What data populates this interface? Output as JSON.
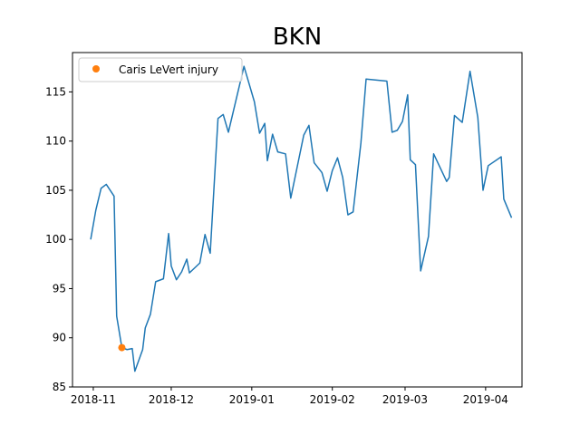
{
  "chart_data": {
    "type": "line",
    "title": "BKN",
    "xlabel": "",
    "ylabel": "",
    "x_axis": "date",
    "xlim": [
      "2018-10-24",
      "2019-04-15"
    ],
    "ylim": [
      85,
      119
    ],
    "x_ticks": [
      "2018-11-01",
      "2018-12-01",
      "2019-01-01",
      "2019-02-01",
      "2019-03-01",
      "2019-04-01"
    ],
    "x_tick_labels": [
      "2018-11",
      "2018-12",
      "2019-01",
      "2019-02",
      "2019-03",
      "2019-04"
    ],
    "y_ticks": [
      85,
      90,
      95,
      100,
      105,
      110,
      115
    ],
    "y_tick_labels": [
      "85",
      "90",
      "95",
      "100",
      "105",
      "110",
      "115"
    ],
    "grid": false,
    "legend_position": "top-left",
    "series": [
      {
        "color": "#1f77b4",
        "points": [
          [
            "2018-10-31",
            100.0
          ],
          [
            "2018-11-02",
            103.0
          ],
          [
            "2018-11-04",
            105.2
          ],
          [
            "2018-11-06",
            105.6
          ],
          [
            "2018-11-09",
            104.4
          ],
          [
            "2018-11-10",
            92.2
          ],
          [
            "2018-11-12",
            89.0
          ],
          [
            "2018-11-14",
            88.8
          ],
          [
            "2018-11-16",
            88.9
          ],
          [
            "2018-11-17",
            86.6
          ],
          [
            "2018-11-20",
            88.8
          ],
          [
            "2018-11-21",
            91.0
          ],
          [
            "2018-11-23",
            92.4
          ],
          [
            "2018-11-25",
            95.7
          ],
          [
            "2018-11-28",
            96.0
          ],
          [
            "2018-11-30",
            100.6
          ],
          [
            "2018-12-01",
            97.3
          ],
          [
            "2018-12-03",
            95.9
          ],
          [
            "2018-12-05",
            96.7
          ],
          [
            "2018-12-07",
            98.0
          ],
          [
            "2018-12-08",
            96.6
          ],
          [
            "2018-12-12",
            97.6
          ],
          [
            "2018-12-14",
            100.5
          ],
          [
            "2018-12-16",
            98.6
          ],
          [
            "2018-12-19",
            112.3
          ],
          [
            "2018-12-21",
            112.7
          ],
          [
            "2018-12-23",
            110.9
          ],
          [
            "2018-12-29",
            117.6
          ],
          [
            "2019-01-02",
            114.0
          ],
          [
            "2019-01-04",
            110.8
          ],
          [
            "2019-01-06",
            111.8
          ],
          [
            "2019-01-07",
            108.0
          ],
          [
            "2019-01-09",
            110.7
          ],
          [
            "2019-01-11",
            108.9
          ],
          [
            "2019-01-14",
            108.7
          ],
          [
            "2019-01-16",
            104.2
          ],
          [
            "2019-01-21",
            110.6
          ],
          [
            "2019-01-23",
            111.6
          ],
          [
            "2019-01-25",
            107.8
          ],
          [
            "2019-01-28",
            106.8
          ],
          [
            "2019-01-30",
            104.9
          ],
          [
            "2019-02-01",
            107.0
          ],
          [
            "2019-02-03",
            108.3
          ],
          [
            "2019-02-05",
            106.3
          ],
          [
            "2019-02-07",
            102.5
          ],
          [
            "2019-02-09",
            102.8
          ],
          [
            "2019-02-12",
            109.8
          ],
          [
            "2019-02-14",
            116.3
          ],
          [
            "2019-02-22",
            116.1
          ],
          [
            "2019-02-24",
            110.9
          ],
          [
            "2019-02-26",
            111.1
          ],
          [
            "2019-02-28",
            112.0
          ],
          [
            "2019-03-02",
            114.7
          ],
          [
            "2019-03-03",
            108.1
          ],
          [
            "2019-03-05",
            107.6
          ],
          [
            "2019-03-07",
            96.8
          ],
          [
            "2019-03-10",
            100.3
          ],
          [
            "2019-03-12",
            108.7
          ],
          [
            "2019-03-17",
            105.9
          ],
          [
            "2019-03-18",
            106.3
          ],
          [
            "2019-03-20",
            112.6
          ],
          [
            "2019-03-23",
            111.9
          ],
          [
            "2019-03-26",
            117.1
          ],
          [
            "2019-03-29",
            112.4
          ],
          [
            "2019-03-31",
            105.0
          ],
          [
            "2019-04-02",
            107.5
          ],
          [
            "2019-04-07",
            108.4
          ],
          [
            "2019-04-08",
            104.1
          ],
          [
            "2019-04-11",
            102.2
          ]
        ]
      },
      {
        "name": "Caris LeVert injury",
        "type": "scatter",
        "color": "#ff7f0e",
        "points": [
          [
            "2018-11-12",
            89.0
          ]
        ]
      }
    ]
  }
}
